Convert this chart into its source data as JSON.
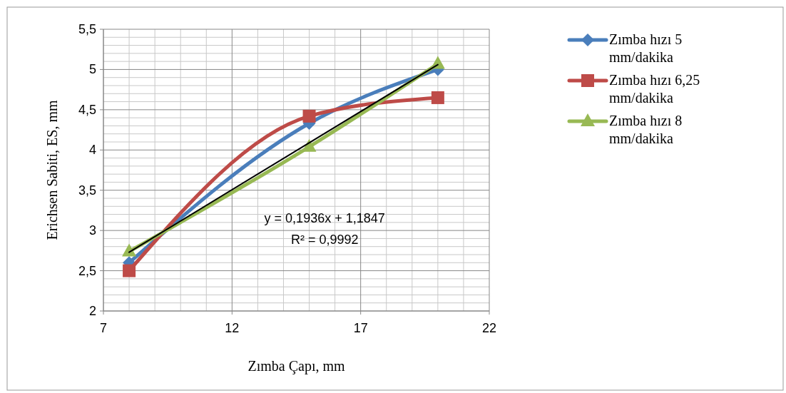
{
  "chart_data": {
    "type": "line",
    "xlabel": "Zımba Çapı, mm",
    "ylabel": "Erichsen Sabiti, ES, mm",
    "x": [
      8,
      15,
      20
    ],
    "series": [
      {
        "name": "Zımba hızı 5 mm/dakika",
        "color": "#4a7ebb",
        "values": [
          2.6,
          4.33,
          5.0
        ],
        "marker": "diamond"
      },
      {
        "name": "Zımba hızı 6,25 mm/dakika",
        "color": "#be4b48",
        "values": [
          2.5,
          4.42,
          4.65
        ],
        "marker": "square"
      },
      {
        "name": "Zımba hızı 8 mm/dakika",
        "color": "#98b954",
        "values": [
          2.74,
          4.04,
          5.07
        ],
        "marker": "triangle"
      },
      {
        "type": "line",
        "color": "#000000",
        "x": [
          8,
          20
        ],
        "values": [
          2.73,
          5.06
        ],
        "marker": "none"
      }
    ],
    "xlim": [
      7,
      22
    ],
    "xticks": [
      7,
      12,
      17,
      22
    ],
    "ylim": [
      2,
      5.5
    ],
    "yticks": [
      2,
      {
        "value": 2.5,
        "label": "2,5"
      },
      3,
      {
        "value": 3.5,
        "label": "3,5"
      },
      4,
      {
        "value": 4.5,
        "label": "4,5"
      },
      5,
      {
        "value": 5.5,
        "label": "5,5"
      }
    ],
    "grid": true,
    "legend": "right",
    "annotations": [
      "y = 0,1936x + 1,1847",
      "R² = 0,9992"
    ]
  }
}
